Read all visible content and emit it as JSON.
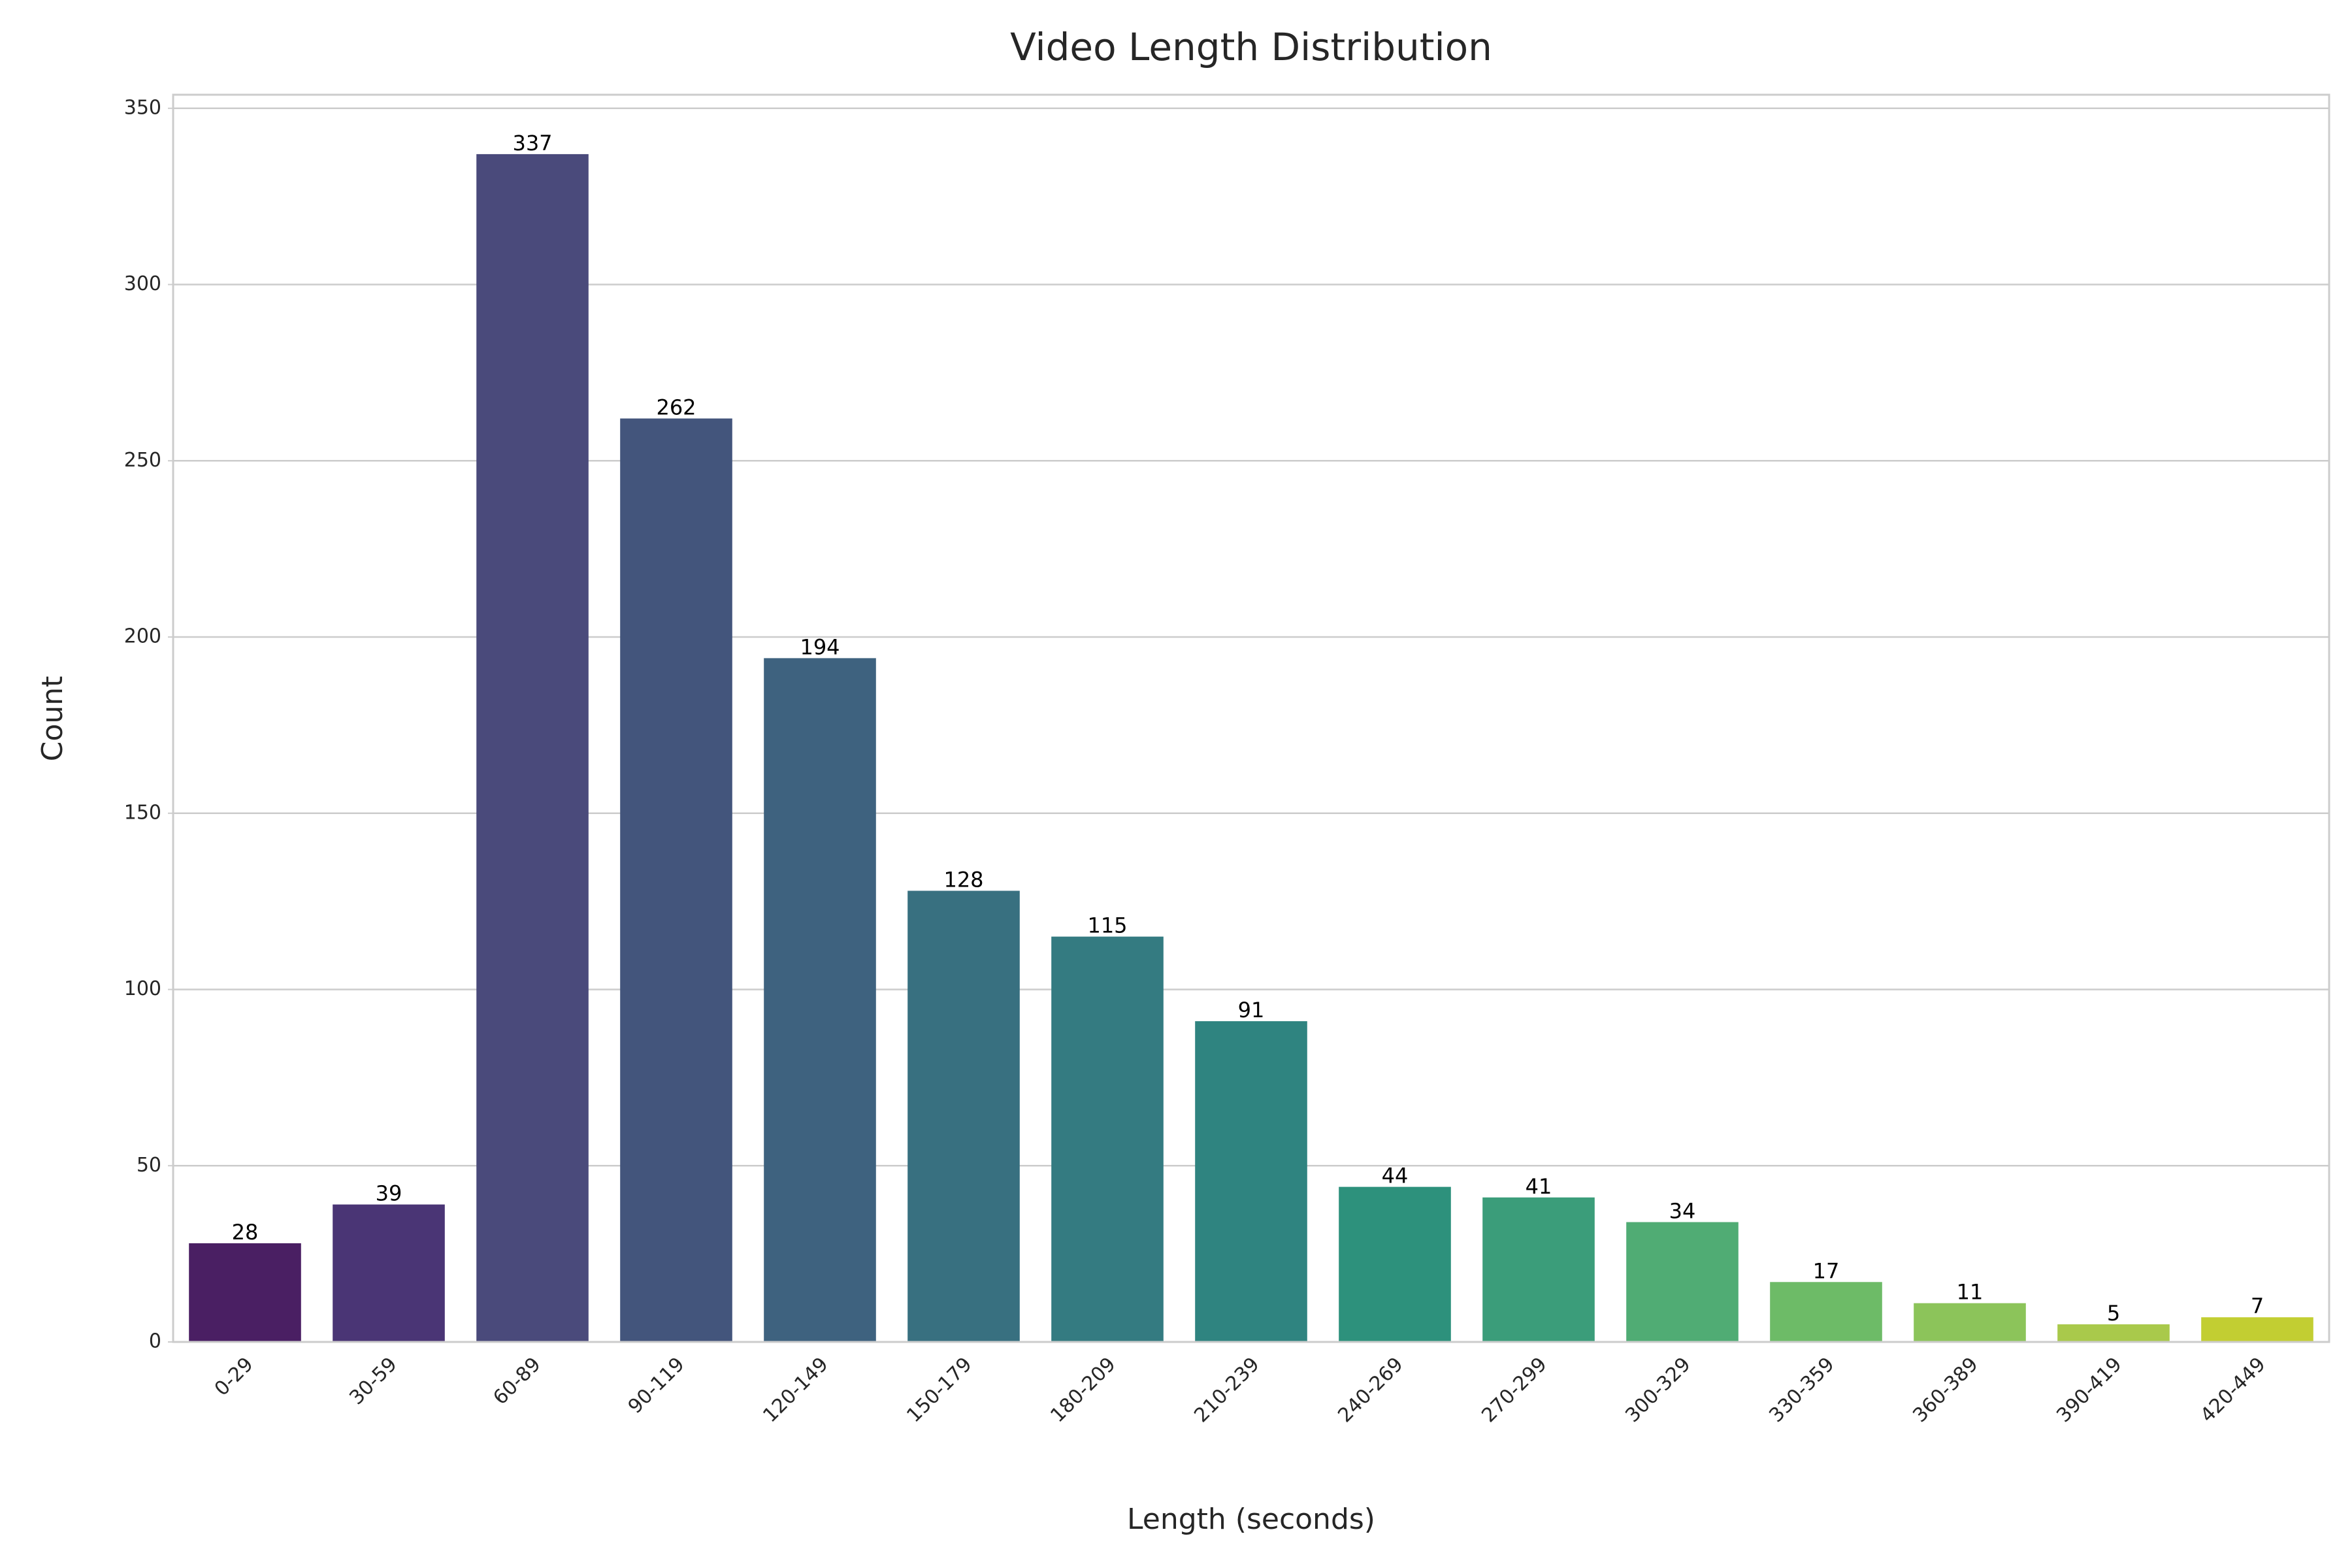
{
  "chart_data": {
    "type": "bar",
    "title": "Video Length Distribution",
    "x_label": "Length (seconds)",
    "y_label": "Count",
    "categories": [
      "0-29",
      "30-59",
      "60-89",
      "90-119",
      "120-149",
      "150-179",
      "180-209",
      "210-239",
      "240-269",
      "270-299",
      "300-329",
      "330-359",
      "360-389",
      "390-419",
      "420-449"
    ],
    "values": [
      28,
      39,
      337,
      262,
      194,
      128,
      115,
      91,
      44,
      41,
      34,
      17,
      11,
      5,
      7
    ],
    "colors": [
      "#4a1f63",
      "#4a3575",
      "#4a4a7b",
      "#43557c",
      "#3e627f",
      "#387080",
      "#347b81",
      "#2f8480",
      "#2d917c",
      "#3b9d7a",
      "#50ac74",
      "#6dbb67",
      "#8cc45a",
      "#a9c94b",
      "#c2ce32"
    ],
    "ylim": [
      0,
      353.85
    ],
    "yticks": [
      0,
      50,
      100,
      150,
      200,
      250,
      300,
      350
    ],
    "grid": true
  }
}
